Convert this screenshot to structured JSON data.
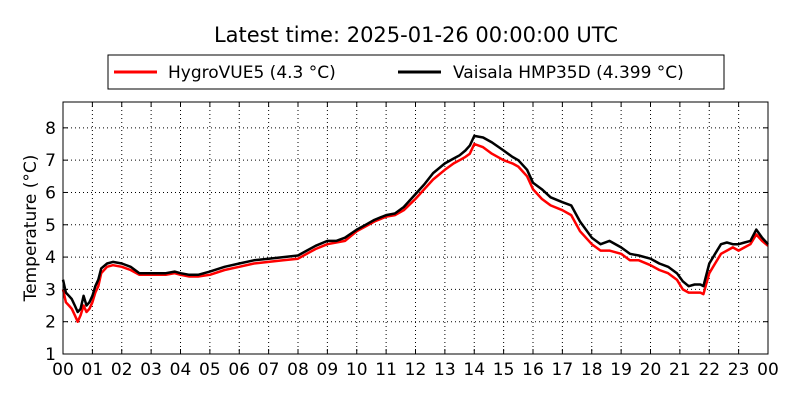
{
  "chart_data": {
    "type": "line",
    "title": "Latest time: 2025-01-26 00:00:00 UTC",
    "xlabel": "",
    "ylabel": "Temperature (°C)",
    "x_unit": "hour of day (UTC)",
    "xlim": [
      0,
      24
    ],
    "ylim": [
      1,
      8.8
    ],
    "x_ticks": [
      0,
      1,
      2,
      3,
      4,
      5,
      6,
      7,
      8,
      9,
      10,
      11,
      12,
      13,
      14,
      15,
      16,
      17,
      18,
      19,
      20,
      21,
      22,
      23,
      24
    ],
    "x_tick_labels": [
      "00",
      "01",
      "02",
      "03",
      "04",
      "05",
      "06",
      "07",
      "08",
      "09",
      "10",
      "11",
      "12",
      "13",
      "14",
      "15",
      "16",
      "17",
      "18",
      "19",
      "20",
      "21",
      "22",
      "23",
      "00"
    ],
    "y_ticks": [
      1,
      2,
      3,
      4,
      5,
      6,
      7,
      8
    ],
    "y_tick_labels": [
      "1",
      "2",
      "3",
      "4",
      "5",
      "6",
      "7",
      "8"
    ],
    "grid": true,
    "legend_position": "top",
    "series": [
      {
        "name": "HygroVUE5 (4.3 °C)",
        "color": "#ff0000",
        "x": [
          0,
          0.1,
          0.2,
          0.3,
          0.4,
          0.5,
          0.6,
          0.7,
          0.8,
          0.9,
          1.0,
          1.1,
          1.2,
          1.3,
          1.5,
          1.7,
          2.0,
          2.3,
          2.6,
          3.0,
          3.5,
          3.8,
          4.0,
          4.3,
          4.6,
          5.0,
          5.5,
          6.0,
          6.5,
          7.0,
          7.5,
          8.0,
          8.3,
          8.6,
          9.0,
          9.3,
          9.6,
          10.0,
          10.3,
          10.6,
          11.0,
          11.3,
          11.6,
          12.0,
          12.3,
          12.6,
          13.0,
          13.3,
          13.5,
          13.7,
          13.85,
          14.0,
          14.3,
          14.6,
          15.0,
          15.3,
          15.5,
          15.8,
          16.0,
          16.3,
          16.6,
          17.0,
          17.3,
          17.6,
          18.0,
          18.3,
          18.6,
          19.0,
          19.3,
          19.6,
          20.0,
          20.3,
          20.6,
          20.9,
          21.1,
          21.3,
          21.5,
          21.7,
          21.8,
          22.0,
          22.2,
          22.4,
          22.6,
          22.8,
          23.0,
          23.2,
          23.4,
          23.6,
          23.8,
          24.0
        ],
        "y": [
          3.0,
          2.6,
          2.5,
          2.4,
          2.2,
          2.0,
          2.2,
          2.5,
          2.3,
          2.4,
          2.6,
          2.9,
          3.1,
          3.5,
          3.7,
          3.75,
          3.7,
          3.6,
          3.45,
          3.45,
          3.45,
          3.5,
          3.45,
          3.4,
          3.4,
          3.45,
          3.6,
          3.7,
          3.8,
          3.85,
          3.9,
          3.95,
          4.1,
          4.25,
          4.4,
          4.45,
          4.5,
          4.8,
          4.95,
          5.1,
          5.25,
          5.3,
          5.45,
          5.8,
          6.1,
          6.4,
          6.7,
          6.9,
          7.0,
          7.1,
          7.2,
          7.5,
          7.4,
          7.2,
          7.0,
          6.9,
          6.8,
          6.5,
          6.1,
          5.8,
          5.6,
          5.45,
          5.3,
          4.8,
          4.4,
          4.2,
          4.2,
          4.1,
          3.9,
          3.9,
          3.75,
          3.6,
          3.5,
          3.3,
          3.0,
          2.9,
          2.9,
          2.9,
          2.85,
          3.5,
          3.8,
          4.1,
          4.2,
          4.3,
          4.2,
          4.3,
          4.4,
          4.7,
          4.5,
          4.35
        ]
      },
      {
        "name": "Vaisala HMP35D (4.399 °C)",
        "color": "#000000",
        "x": [
          0,
          0.1,
          0.2,
          0.3,
          0.4,
          0.5,
          0.6,
          0.7,
          0.8,
          0.9,
          1.0,
          1.1,
          1.2,
          1.3,
          1.5,
          1.7,
          2.0,
          2.3,
          2.6,
          3.0,
          3.5,
          3.8,
          4.0,
          4.3,
          4.6,
          5.0,
          5.5,
          6.0,
          6.5,
          7.0,
          7.5,
          8.0,
          8.3,
          8.6,
          9.0,
          9.3,
          9.6,
          10.0,
          10.3,
          10.6,
          11.0,
          11.3,
          11.6,
          12.0,
          12.3,
          12.6,
          13.0,
          13.3,
          13.5,
          13.7,
          13.85,
          14.0,
          14.3,
          14.6,
          15.0,
          15.3,
          15.5,
          15.8,
          16.0,
          16.3,
          16.6,
          17.0,
          17.3,
          17.6,
          18.0,
          18.3,
          18.6,
          19.0,
          19.3,
          19.6,
          20.0,
          20.3,
          20.6,
          20.9,
          21.1,
          21.3,
          21.5,
          21.7,
          21.8,
          22.0,
          22.2,
          22.4,
          22.6,
          22.8,
          23.0,
          23.2,
          23.4,
          23.6,
          23.8,
          24.0
        ],
        "y": [
          3.3,
          2.9,
          2.8,
          2.7,
          2.5,
          2.3,
          2.4,
          2.8,
          2.5,
          2.6,
          2.8,
          3.1,
          3.3,
          3.65,
          3.8,
          3.85,
          3.8,
          3.7,
          3.5,
          3.5,
          3.5,
          3.55,
          3.5,
          3.45,
          3.45,
          3.55,
          3.7,
          3.8,
          3.9,
          3.95,
          4.0,
          4.05,
          4.2,
          4.35,
          4.5,
          4.5,
          4.6,
          4.85,
          5.0,
          5.15,
          5.3,
          5.35,
          5.55,
          5.95,
          6.25,
          6.6,
          6.9,
          7.05,
          7.15,
          7.3,
          7.45,
          7.75,
          7.7,
          7.55,
          7.3,
          7.1,
          7.0,
          6.7,
          6.3,
          6.1,
          5.85,
          5.7,
          5.6,
          5.1,
          4.6,
          4.4,
          4.5,
          4.3,
          4.1,
          4.05,
          3.95,
          3.8,
          3.7,
          3.5,
          3.25,
          3.1,
          3.15,
          3.15,
          3.1,
          3.8,
          4.1,
          4.4,
          4.45,
          4.4,
          4.4,
          4.45,
          4.5,
          4.85,
          4.6,
          4.4
        ]
      }
    ]
  }
}
